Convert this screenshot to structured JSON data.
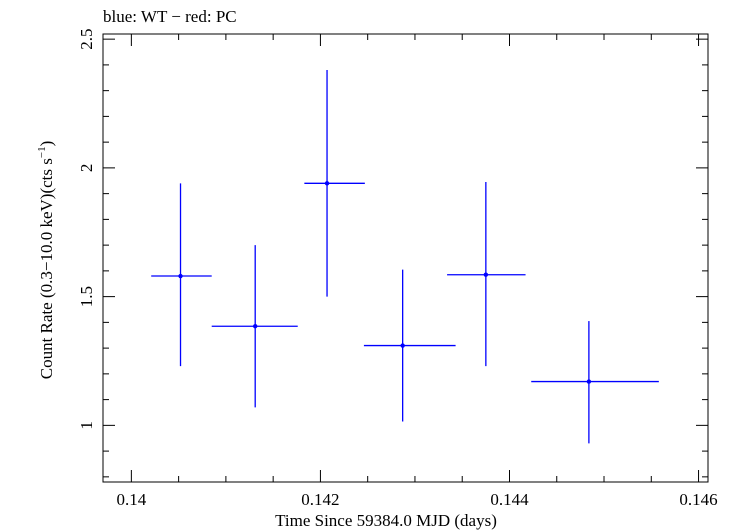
{
  "chart_data": {
    "type": "scatter",
    "title": "blue: WT − red: PC",
    "xlabel": "Time Since 59384.0 MJD (days)",
    "ylabel": "Count Rate (0.3−10.0 keV)(cts s",
    "ylabel_sup": "−1",
    "ylabel_end": ")",
    "xlim": [
      0.1397,
      0.1461
    ],
    "ylim": [
      0.78,
      2.52
    ],
    "x_ticks": [
      0.14,
      0.142,
      0.144,
      0.146
    ],
    "x_tick_labels": [
      "0.14",
      "0.142",
      "0.144",
      "0.146"
    ],
    "y_ticks": [
      1,
      1.5,
      2,
      2.5
    ],
    "y_tick_labels": [
      "1",
      "1.5",
      "2",
      "2.5"
    ],
    "grid": false,
    "series": [
      {
        "color": "#0000ff",
        "points": [
          {
            "x": 0.14052,
            "xerr": [
              0.14021,
              0.14085
            ],
            "y": 1.58,
            "yerr": [
              1.23,
              1.94
            ]
          },
          {
            "x": 0.14131,
            "xerr": [
              0.14085,
              0.14176
            ],
            "y": 1.385,
            "yerr": [
              1.07,
              1.7
            ]
          },
          {
            "x": 0.14207,
            "xerr": [
              0.14183,
              0.14247
            ],
            "y": 1.94,
            "yerr": [
              1.5,
              2.38
            ]
          },
          {
            "x": 0.14287,
            "xerr": [
              0.14246,
              0.14343
            ],
            "y": 1.31,
            "yerr": [
              1.015,
              1.605
            ]
          },
          {
            "x": 0.14375,
            "xerr": [
              0.14334,
              0.14417
            ],
            "y": 1.585,
            "yerr": [
              1.23,
              1.945
            ]
          },
          {
            "x": 0.14484,
            "xerr": [
              0.14423,
              0.14558
            ],
            "y": 1.17,
            "yerr": [
              0.93,
              1.405
            ]
          }
        ]
      }
    ]
  }
}
